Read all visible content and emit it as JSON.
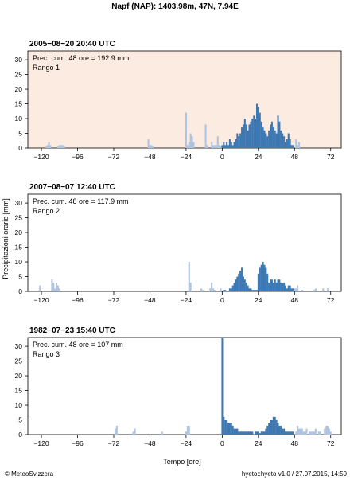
{
  "title": "Napf (NAP): 1403.98m, 47N, 7.94E",
  "ylabel": "Precipitazioni orarie [mm]",
  "xlabel": "Tempo [ore]",
  "footer_left": "© MeteoSvizzera",
  "footer_right": "hyeto::hyeto v1.0 / 27.07.2015, 14:50",
  "colors": {
    "outside_48h": "#aec4e0",
    "within_48h": "#3e78b2",
    "highlight_background": "#fbebe0"
  },
  "chart_data": [
    {
      "type": "bar",
      "title": "2005−08−20 20:40 UTC",
      "annotation_1": "Prec. cum. 48 ore = 192.9 mm",
      "annotation_2": "Rango 1",
      "highlighted": true,
      "xlim": [
        -129,
        79
      ],
      "ylim": [
        0,
        33
      ],
      "xticks": [
        -120,
        -96,
        -72,
        -48,
        -24,
        0,
        24,
        48,
        72
      ],
      "xticklabels": [
        "−120",
        "−96",
        "−72",
        "−48",
        "−24",
        "0",
        "24",
        "48",
        "72"
      ],
      "yticks": [
        0,
        5,
        10,
        15,
        20,
        25,
        30
      ],
      "series": [
        {
          "values": [
            [
              -117,
              0.5
            ],
            [
              -116,
              1
            ],
            [
              -115,
              2
            ],
            [
              -114,
              1
            ],
            [
              -109,
              0.5
            ],
            [
              -108,
              1
            ],
            [
              -107,
              1
            ],
            [
              -106,
              1
            ],
            [
              -105,
              0.5
            ],
            [
              -49,
              3
            ],
            [
              -48,
              1
            ],
            [
              -47,
              1
            ],
            [
              -46,
              0.5
            ],
            [
              -24,
              12
            ],
            [
              -23,
              1
            ],
            [
              -22,
              2
            ],
            [
              -21,
              5
            ],
            [
              -20,
              4
            ],
            [
              -19,
              2
            ],
            [
              -11,
              8
            ],
            [
              -10,
              1
            ],
            [
              -7,
              2
            ],
            [
              -6,
              1
            ],
            [
              -5,
              1
            ],
            [
              -4,
              1
            ],
            [
              -3,
              4
            ],
            [
              -2,
              1
            ],
            [
              -1,
              0.5
            ],
            [
              49,
              3
            ],
            [
              50,
              1
            ],
            [
              51,
              2
            ]
          ]
        },
        {
          "values": [
            [
              0,
              1
            ],
            [
              1,
              2
            ],
            [
              2,
              1
            ],
            [
              3,
              2
            ],
            [
              4,
              1
            ],
            [
              5,
              3
            ],
            [
              6,
              2
            ],
            [
              7,
              1
            ],
            [
              8,
              2
            ],
            [
              9,
              3
            ],
            [
              10,
              5
            ],
            [
              11,
              4
            ],
            [
              12,
              5
            ],
            [
              13,
              7
            ],
            [
              14,
              8
            ],
            [
              15,
              10
            ],
            [
              16,
              8
            ],
            [
              17,
              6
            ],
            [
              18,
              8
            ],
            [
              19,
              9
            ],
            [
              20,
              10
            ],
            [
              21,
              11
            ],
            [
              22,
              10
            ],
            [
              23,
              15
            ],
            [
              24,
              14
            ],
            [
              25,
              12
            ],
            [
              26,
              9
            ],
            [
              27,
              7
            ],
            [
              28,
              6
            ],
            [
              29,
              5
            ],
            [
              30,
              4
            ],
            [
              31,
              6
            ],
            [
              32,
              8
            ],
            [
              33,
              9
            ],
            [
              34,
              7
            ],
            [
              35,
              6
            ],
            [
              36,
              5
            ],
            [
              37,
              11
            ],
            [
              38,
              9
            ],
            [
              39,
              6
            ],
            [
              40,
              5
            ],
            [
              41,
              4
            ],
            [
              42,
              2
            ],
            [
              43,
              3
            ],
            [
              44,
              5
            ],
            [
              45,
              3
            ],
            [
              46,
              1
            ],
            [
              47,
              1
            ]
          ]
        }
      ]
    },
    {
      "type": "bar",
      "title": "2007−08−07 12:40 UTC",
      "annotation_1": "Prec. cum. 48 ore = 117.9 mm",
      "annotation_2": "Rango 2",
      "highlighted": false,
      "xlim": [
        -129,
        79
      ],
      "ylim": [
        0,
        33
      ],
      "xticks": [
        -120,
        -96,
        -72,
        -48,
        -24,
        0,
        24,
        48,
        72
      ],
      "xticklabels": [
        "−120",
        "−96",
        "−72",
        "−48",
        "−24",
        "0",
        "24",
        "48",
        "72"
      ],
      "yticks": [
        0,
        5,
        10,
        15,
        20,
        25,
        30
      ],
      "series": [
        {
          "values": [
            [
              -121,
              2
            ],
            [
              -113,
              4
            ],
            [
              -112,
              3
            ],
            [
              -111,
              1
            ],
            [
              -110,
              3
            ],
            [
              -109,
              2
            ],
            [
              -108,
              1
            ],
            [
              -22,
              10
            ],
            [
              -21,
              3
            ],
            [
              -14,
              1
            ],
            [
              -13,
              0.5
            ],
            [
              -8,
              1
            ],
            [
              -7,
              3
            ],
            [
              -6,
              1
            ],
            [
              -5,
              0.5
            ],
            [
              -1,
              1
            ],
            [
              48,
              1
            ],
            [
              49,
              1
            ],
            [
              50,
              2
            ],
            [
              53,
              0.5
            ],
            [
              61,
              0.5
            ],
            [
              62,
              1
            ],
            [
              67,
              1
            ],
            [
              70,
              1
            ]
          ]
        },
        {
          "values": [
            [
              1,
              0.5
            ],
            [
              2,
              0.5
            ],
            [
              5,
              1
            ],
            [
              6,
              1
            ],
            [
              7,
              2
            ],
            [
              8,
              3
            ],
            [
              9,
              4
            ],
            [
              10,
              5
            ],
            [
              11,
              6
            ],
            [
              12,
              7
            ],
            [
              13,
              8
            ],
            [
              14,
              5
            ],
            [
              15,
              4
            ],
            [
              16,
              3
            ],
            [
              17,
              2
            ],
            [
              18,
              1
            ],
            [
              19,
              1
            ],
            [
              20,
              0.5
            ],
            [
              21,
              0.5
            ],
            [
              22,
              0.5
            ],
            [
              23,
              0.5
            ],
            [
              24,
              6
            ],
            [
              25,
              8
            ],
            [
              26,
              9
            ],
            [
              27,
              10
            ],
            [
              28,
              9
            ],
            [
              29,
              8
            ],
            [
              30,
              6
            ],
            [
              31,
              3
            ],
            [
              32,
              4
            ],
            [
              33,
              4
            ],
            [
              34,
              3
            ],
            [
              35,
              4
            ],
            [
              36,
              3
            ],
            [
              37,
              4
            ],
            [
              38,
              4
            ],
            [
              39,
              3
            ],
            [
              40,
              3
            ],
            [
              41,
              3
            ],
            [
              42,
              2
            ],
            [
              43,
              1
            ],
            [
              44,
              2
            ],
            [
              45,
              2
            ],
            [
              46,
              1
            ],
            [
              47,
              1
            ]
          ]
        }
      ]
    },
    {
      "type": "bar",
      "title": "1982−07−23 15:40 UTC",
      "annotation_1": "Prec. cum. 48 ore = 107 mm",
      "annotation_2": "Rango 3",
      "highlighted": false,
      "xlim": [
        -129,
        79
      ],
      "ylim": [
        0,
        33
      ],
      "xticks": [
        -120,
        -96,
        -72,
        -48,
        -24,
        0,
        24,
        48,
        72
      ],
      "xticklabels": [
        "−120",
        "−96",
        "−72",
        "−48",
        "−24",
        "0",
        "24",
        "48",
        "72"
      ],
      "yticks": [
        0,
        5,
        10,
        15,
        20,
        25,
        30
      ],
      "series": [
        {
          "values": [
            [
              -71,
              2
            ],
            [
              -70,
              3
            ],
            [
              -59,
              1
            ],
            [
              -58,
              2
            ],
            [
              -40,
              1
            ],
            [
              -24,
              1
            ],
            [
              -23,
              3
            ],
            [
              -22,
              3
            ],
            [
              49,
              1
            ],
            [
              50,
              3
            ],
            [
              51,
              2
            ],
            [
              52,
              2
            ],
            [
              53,
              2
            ],
            [
              54,
              1
            ],
            [
              55,
              1
            ],
            [
              56,
              2
            ],
            [
              58,
              1
            ],
            [
              59,
              1
            ],
            [
              60,
              1
            ],
            [
              61,
              1
            ],
            [
              62,
              2
            ],
            [
              64,
              1
            ],
            [
              65,
              1
            ],
            [
              68,
              2
            ],
            [
              69,
              3
            ],
            [
              70,
              3
            ],
            [
              71,
              2
            ],
            [
              72,
              1
            ]
          ]
        },
        {
          "values": [
            [
              0,
              33
            ],
            [
              1,
              6
            ],
            [
              2,
              5
            ],
            [
              3,
              5
            ],
            [
              4,
              4
            ],
            [
              5,
              4
            ],
            [
              6,
              4
            ],
            [
              7,
              3
            ],
            [
              8,
              2
            ],
            [
              9,
              2
            ],
            [
              10,
              2
            ],
            [
              11,
              1
            ],
            [
              12,
              1
            ],
            [
              13,
              1
            ],
            [
              14,
              1
            ],
            [
              15,
              1
            ],
            [
              16,
              1
            ],
            [
              17,
              1
            ],
            [
              18,
              1
            ],
            [
              19,
              1
            ],
            [
              20,
              1
            ],
            [
              22,
              1
            ],
            [
              23,
              1
            ],
            [
              24,
              1
            ],
            [
              25,
              0.5
            ],
            [
              26,
              1
            ],
            [
              27,
              1
            ],
            [
              28,
              1
            ],
            [
              29,
              2
            ],
            [
              30,
              3
            ],
            [
              31,
              4
            ],
            [
              32,
              5
            ],
            [
              33,
              5
            ],
            [
              34,
              6
            ],
            [
              35,
              6
            ],
            [
              36,
              5
            ],
            [
              37,
              4
            ],
            [
              38,
              3
            ],
            [
              39,
              3
            ],
            [
              40,
              2
            ],
            [
              41,
              2
            ],
            [
              42,
              1
            ],
            [
              43,
              1
            ],
            [
              44,
              1
            ],
            [
              45,
              1
            ],
            [
              46,
              1
            ],
            [
              47,
              1
            ]
          ]
        }
      ]
    }
  ]
}
